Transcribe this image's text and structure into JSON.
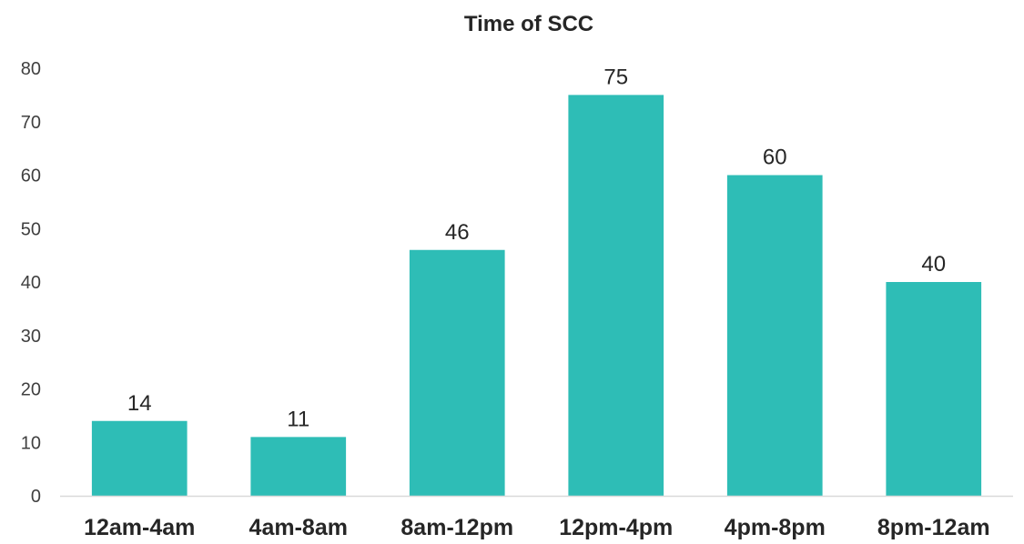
{
  "chart_data": {
    "type": "bar",
    "title": "Time of SCC",
    "xlabel": "",
    "ylabel": "",
    "categories": [
      "12am-4am",
      "4am-8am",
      "8am-12pm",
      "12pm-4pm",
      "4pm-8pm",
      "8pm-12am"
    ],
    "values": [
      14,
      11,
      46,
      75,
      60,
      40
    ],
    "ylim": [
      0,
      80
    ],
    "yticks": [
      "0",
      "10",
      "20",
      "30",
      "40",
      "50",
      "60",
      "70",
      "80"
    ],
    "data_labels": [
      "14",
      "11",
      "46",
      "75",
      "60",
      "40"
    ],
    "grid": false,
    "legend": "none",
    "colors": {
      "bar": "#2EBDB6",
      "axis": "#D9D9D9"
    }
  }
}
